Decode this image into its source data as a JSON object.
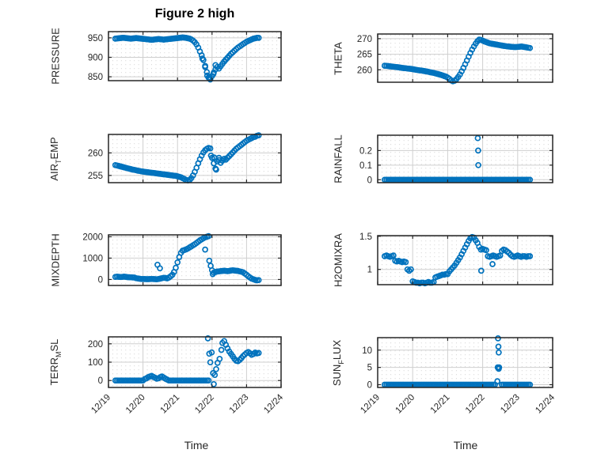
{
  "figure": {
    "title": "Figure 2 high",
    "xlabel": "Time",
    "marker_color": "#0072BD",
    "axis_color": "#262626",
    "major_grid_color": "#cfcfcf",
    "minor_grid_color": "#dadada"
  },
  "xaxis": {
    "tick_labels": [
      "12/19",
      "12/20",
      "12/21",
      "12/22",
      "12/23",
      "12/24"
    ],
    "tick_days": [
      0,
      1,
      2,
      3,
      4,
      5
    ],
    "minor_per_day": 8
  },
  "chart_data": [
    {
      "id": "pressure",
      "type": "scatter",
      "ylabel": "PRESSURE",
      "ylabel_parts": [
        {
          "t": "PRESSURE"
        }
      ],
      "xlim": [
        0,
        5
      ],
      "ylim": [
        840,
        966
      ],
      "yticks": [
        {
          "v": 850,
          "label": "850"
        },
        {
          "v": 900,
          "label": "900"
        },
        {
          "v": 950,
          "label": "950"
        }
      ],
      "series": {
        "x0": 0.2,
        "dx": 0.05,
        "y": [
          948,
          948.5,
          949,
          949.5,
          950,
          950,
          949.5,
          949,
          948.5,
          948,
          948.5,
          949,
          949.5,
          949,
          948.5,
          948,
          947.5,
          947,
          946.5,
          946,
          945.5,
          945,
          945.5,
          946,
          946.5,
          947,
          946.5,
          946,
          945.5,
          946,
          946.5,
          947,
          947.5,
          948,
          948.5,
          949,
          949.5,
          950,
          950.5,
          951,
          950.5,
          950,
          949,
          948,
          946,
          943,
          939,
          933,
          925,
          915,
          905,
          893,
          878,
          862,
          848,
          843,
          852,
          861,
          869,
          875,
          871,
          877,
          883,
          889,
          894,
          899,
          904,
          909,
          913,
          917,
          921,
          925,
          928,
          931,
          934,
          937,
          940,
          942,
          944,
          946,
          948,
          949,
          950,
          950
        ]
      },
      "points": [
        [
          2.72,
          897
        ],
        [
          2.8,
          875
        ],
        [
          2.86,
          853
        ],
        [
          2.93,
          846
        ],
        [
          3.04,
          857
        ],
        [
          3.1,
          880
        ]
      ]
    },
    {
      "id": "theta",
      "type": "scatter",
      "ylabel": "THETA",
      "ylabel_parts": [
        {
          "t": "THETA"
        }
      ],
      "xlim": [
        0,
        5
      ],
      "ylim": [
        256,
        271.5
      ],
      "yticks": [
        {
          "v": 260,
          "label": "260"
        },
        {
          "v": 265,
          "label": "265"
        },
        {
          "v": 270,
          "label": "270"
        }
      ],
      "series": {
        "x0": 0.2,
        "dx": 0.05,
        "y": [
          261.3,
          261.25,
          261.2,
          261.1,
          261.05,
          261.0,
          260.9,
          260.85,
          260.8,
          260.7,
          260.6,
          260.55,
          260.5,
          260.4,
          260.35,
          260.3,
          260.2,
          260.1,
          260.0,
          259.9,
          259.8,
          259.75,
          259.65,
          259.55,
          259.45,
          259.35,
          259.2,
          259.1,
          259.0,
          258.85,
          258.7,
          258.55,
          258.4,
          258.2,
          258.0,
          257.8,
          257.5,
          257.1,
          256.6,
          256.3,
          256.5,
          257.0,
          257.7,
          258.5,
          259.5,
          260.6,
          261.8,
          263.0,
          264.2,
          265.4,
          266.5,
          267.5,
          268.4,
          269.2,
          269.7,
          269.6,
          269.4,
          269.1,
          268.9,
          268.7,
          268.5,
          268.4,
          268.3,
          268.2,
          268.1,
          268.0,
          267.9,
          267.8,
          267.7,
          267.6,
          267.5,
          267.45,
          267.4,
          267.35,
          267.3,
          267.3,
          267.35,
          267.4,
          267.45,
          267.4,
          267.3,
          267.2,
          267.1,
          267.0
        ]
      },
      "points": []
    },
    {
      "id": "airtemp",
      "type": "scatter",
      "ylabel": "AIR_TEMP",
      "ylabel_parts": [
        {
          "t": "AIR"
        },
        {
          "s": "T"
        },
        {
          "t": "EMP"
        }
      ],
      "xlim": [
        0,
        5
      ],
      "ylim": [
        253.4,
        264.1
      ],
      "yticks": [
        {
          "v": 255,
          "label": "255"
        },
        {
          "v": 260,
          "label": "260"
        }
      ],
      "series": {
        "x0": 0.2,
        "dx": 0.05,
        "y": [
          257.3,
          257.2,
          257.1,
          257.0,
          256.9,
          256.8,
          256.7,
          256.6,
          256.5,
          256.4,
          256.3,
          256.25,
          256.15,
          256.05,
          256.0,
          255.9,
          255.85,
          255.8,
          255.75,
          255.7,
          255.65,
          255.6,
          255.55,
          255.5,
          255.45,
          255.4,
          255.35,
          255.3,
          255.25,
          255.2,
          255.15,
          255.1,
          255.05,
          255.0,
          254.95,
          254.9,
          254.8,
          254.7,
          254.6,
          254.4,
          254.2,
          254.0,
          253.9,
          254.0,
          254.4,
          255.0,
          255.8,
          256.7,
          257.7,
          258.6,
          259.4,
          260.1,
          260.6,
          260.9,
          261.1,
          261.0,
          258.9,
          257.7,
          256.5,
          258.1,
          258.9,
          257.8,
          258.3,
          258.7,
          258.5,
          258.9,
          259.3,
          259.7,
          260.1,
          260.5,
          260.9,
          261.2,
          261.5,
          261.8,
          262.1,
          262.4,
          262.7,
          262.9,
          263.1,
          263.3,
          263.5,
          263.6,
          263.8,
          263.9
        ]
      },
      "points": [
        [
          2.97,
          259.4
        ],
        [
          3.06,
          259.0
        ],
        [
          3.12,
          256.3
        ],
        [
          3.2,
          258.4
        ]
      ]
    },
    {
      "id": "rainfall",
      "type": "scatter",
      "ylabel": "RAINFALL",
      "ylabel_parts": [
        {
          "t": "RAINFALL"
        }
      ],
      "xlim": [
        0,
        5
      ],
      "ylim": [
        -0.02,
        0.305
      ],
      "yticks": [
        {
          "v": 0,
          "label": "0"
        },
        {
          "v": 0.1,
          "label": "0.1"
        },
        {
          "v": 0.2,
          "label": "0.2"
        }
      ],
      "series": {
        "x0": 0.2,
        "dx": 0.05,
        "y": [
          0,
          0,
          0,
          0,
          0,
          0,
          0,
          0,
          0,
          0,
          0,
          0,
          0,
          0,
          0,
          0,
          0,
          0,
          0,
          0,
          0,
          0,
          0,
          0,
          0,
          0,
          0,
          0,
          0,
          0,
          0,
          0,
          0,
          0,
          0,
          0,
          0,
          0,
          0,
          0,
          0,
          0,
          0,
          0,
          0,
          0,
          0,
          0,
          0,
          0,
          0,
          0,
          0,
          0,
          0,
          0,
          0,
          0,
          0,
          0,
          0,
          0,
          0,
          0,
          0,
          0,
          0,
          0,
          0,
          0,
          0,
          0,
          0,
          0,
          0,
          0,
          0,
          0,
          0,
          0,
          0,
          0,
          0,
          0
        ]
      },
      "points": [
        [
          2.86,
          0.285
        ],
        [
          2.87,
          0.2
        ],
        [
          2.875,
          0.1
        ]
      ]
    },
    {
      "id": "mixdepth",
      "type": "scatter",
      "ylabel": "MIXDEPTH",
      "ylabel_parts": [
        {
          "t": "MIXDEPTH"
        }
      ],
      "xlim": [
        0,
        5
      ],
      "ylim": [
        -280,
        2090
      ],
      "yticks": [
        {
          "v": 0,
          "label": "0"
        },
        {
          "v": 1000,
          "label": "1000"
        },
        {
          "v": 2000,
          "label": "2000"
        }
      ],
      "series": {
        "x0": 0.2,
        "dx": 0.05,
        "y": [
          120,
          130,
          125,
          115,
          120,
          130,
          125,
          110,
          105,
          100,
          95,
          90,
          60,
          45,
          35,
          25,
          20,
          20,
          15,
          15,
          20,
          25,
          20,
          15,
          10,
          25,
          40,
          60,
          80,
          70,
          55,
          90,
          150,
          220,
          350,
          550,
          800,
          1050,
          1250,
          1350,
          1380,
          1410,
          1450,
          1500,
          1550,
          1600,
          1650,
          1710,
          1770,
          1830,
          1880,
          1930,
          1970,
          2000,
          2030,
          null,
          null,
          320,
          350,
          370,
          380,
          390,
          400,
          410,
          400,
          390,
          400,
          420,
          430,
          420,
          410,
          400,
          380,
          360,
          340,
          280,
          220,
          150,
          90,
          40,
          10,
          -20,
          -40,
          -30
        ]
      },
      "points": [
        [
          1.42,
          690
        ],
        [
          1.49,
          525
        ],
        [
          2.8,
          1400
        ],
        [
          2.92,
          880
        ],
        [
          2.96,
          640
        ],
        [
          3.0,
          430
        ],
        [
          3.02,
          250
        ]
      ]
    },
    {
      "id": "h2omixra",
      "type": "scatter",
      "ylabel": "H2OMIXRA",
      "ylabel_parts": [
        {
          "t": "H2OMIXRA"
        }
      ],
      "xlim": [
        0,
        5
      ],
      "ylim": [
        0.77,
        1.51
      ],
      "yticks": [
        {
          "v": 1,
          "label": "1"
        },
        {
          "v": 1.5,
          "label": "1.5"
        }
      ],
      "series": {
        "x0": 0.2,
        "dx": 0.05,
        "y": [
          1.2,
          1.21,
          1.2,
          1.19,
          1.2,
          1.21,
          1.13,
          1.12,
          1.13,
          1.12,
          1.11,
          1.12,
          1.11,
          1.0,
          0.98,
          1.0,
          0.82,
          0.81,
          0.8,
          0.8,
          0.79,
          0.8,
          0.8,
          0.79,
          0.8,
          0.81,
          0.8,
          0.8,
          0.81,
          0.88,
          0.89,
          0.9,
          0.91,
          0.92,
          0.92,
          0.93,
          0.93,
          0.97,
          1.0,
          1.03,
          1.06,
          1.1,
          1.14,
          1.18,
          1.23,
          1.28,
          1.33,
          1.38,
          1.43,
          1.47,
          1.49,
          1.48,
          1.44,
          1.4,
          1.34,
          1.3,
          1.31,
          1.3,
          1.29,
          1.2,
          1.19,
          1.2,
          1.21,
          1.2,
          1.19,
          1.2,
          1.21,
          1.28,
          1.3,
          1.29,
          1.27,
          1.25,
          1.22,
          1.2,
          1.19,
          1.2,
          1.21,
          1.2,
          1.19,
          1.2,
          1.2,
          1.19,
          1.2,
          1.2
        ]
      },
      "points": [
        [
          2.96,
          0.98
        ],
        [
          3.28,
          1.08
        ]
      ]
    },
    {
      "id": "terrmsl",
      "type": "scatter",
      "ylabel": "TERR_MSL",
      "ylabel_parts": [
        {
          "t": "TERR"
        },
        {
          "s": "M"
        },
        {
          "t": "SL"
        }
      ],
      "xlim": [
        0,
        5
      ],
      "ylim": [
        -38,
        238
      ],
      "yticks": [
        {
          "v": 0,
          "label": "0"
        },
        {
          "v": 100,
          "label": "100"
        },
        {
          "v": 200,
          "label": "200"
        }
      ],
      "series": {
        "x0": 0.2,
        "dx": 0.05,
        "y": [
          0,
          0,
          0,
          0,
          0,
          0,
          0,
          0,
          0,
          0,
          0,
          0,
          0,
          0,
          0,
          0,
          0,
          8,
          12,
          18,
          22,
          25,
          20,
          15,
          10,
          12,
          18,
          22,
          16,
          10,
          5,
          0,
          0,
          0,
          0,
          0,
          0,
          0,
          0,
          0,
          0,
          0,
          0,
          0,
          0,
          0,
          0,
          0,
          0,
          0,
          0,
          0,
          0,
          0,
          0,
          null,
          null,
          null,
          null,
          null,
          null,
          null,
          null,
          215,
          195,
          175,
          158,
          145,
          132,
          118,
          108,
          105,
          112,
          122,
          133,
          142,
          150,
          155,
          148,
          140,
          145,
          152,
          148,
          150
        ]
      },
      "points": [
        [
          2.88,
          230
        ],
        [
          2.92,
          146
        ],
        [
          2.95,
          99
        ],
        [
          2.99,
          153
        ],
        [
          3.03,
          40
        ],
        [
          3.05,
          -20
        ],
        [
          3.08,
          30
        ],
        [
          3.12,
          62
        ],
        [
          3.16,
          96
        ],
        [
          3.22,
          118
        ],
        [
          3.27,
          167
        ],
        [
          3.3,
          205
        ]
      ]
    },
    {
      "id": "sunflux",
      "type": "scatter",
      "ylabel": "SUN_FLUX",
      "ylabel_parts": [
        {
          "t": "SUN"
        },
        {
          "s": "F"
        },
        {
          "t": "LUX"
        }
      ],
      "xlim": [
        0,
        5
      ],
      "ylim": [
        -0.8,
        13.6
      ],
      "yticks": [
        {
          "v": 0,
          "label": "0"
        },
        {
          "v": 5,
          "label": "5"
        },
        {
          "v": 10,
          "label": "10"
        }
      ],
      "series": {
        "x0": 0.2,
        "dx": 0.05,
        "y": [
          0,
          0,
          0,
          0,
          0,
          0,
          0,
          0,
          0,
          0,
          0,
          0,
          0,
          0,
          0,
          0,
          0,
          0,
          0,
          0,
          0,
          0,
          0,
          0,
          0,
          0,
          0,
          0,
          0,
          0,
          0,
          0,
          0,
          0,
          0,
          0,
          0,
          0,
          0,
          0,
          0,
          0,
          0,
          0,
          0,
          0,
          0,
          0,
          0,
          0,
          0,
          0,
          0,
          0,
          0,
          0,
          0,
          0,
          0,
          0,
          0,
          0,
          0,
          0,
          null,
          null,
          null,
          0,
          0,
          0,
          0,
          0,
          0,
          0,
          0,
          0,
          0,
          0,
          0,
          0,
          0,
          0,
          0,
          0
        ]
      },
      "points": [
        [
          3.42,
          1.0
        ],
        [
          3.43,
          5.0
        ],
        [
          3.44,
          13.4
        ],
        [
          3.45,
          11.0
        ],
        [
          3.46,
          9.3
        ],
        [
          3.46,
          4.6
        ],
        [
          3.47,
          5.0
        ]
      ]
    }
  ]
}
